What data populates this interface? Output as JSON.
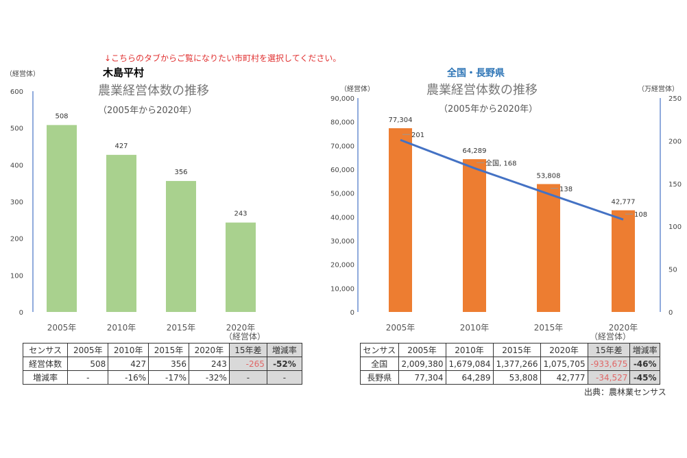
{
  "notice": "↓こちらのタブからご覧になりたい市町村を選択してください。",
  "source": "出典：農林業センサス",
  "colors": {
    "green": "#a9d18e",
    "orange": "#ed7d31",
    "line": "#4472c4",
    "axis": "#8faadc",
    "title": "#2e75b6"
  },
  "chart_data": [
    {
      "type": "bar",
      "name": "木島平村",
      "title": "農業経営体数の推移",
      "subtitle": "（2005年から2020年）",
      "ylabel": "（経営体）",
      "xlabel_unit": "（経営体）",
      "categories": [
        "2005年",
        "2010年",
        "2015年",
        "2020年"
      ],
      "values": [
        508,
        427,
        356,
        243
      ],
      "ylim": [
        0,
        600
      ],
      "yticks": [
        "0",
        "100",
        "200",
        "300",
        "400",
        "500",
        "600"
      ]
    },
    {
      "type": "bar+line",
      "name": "全国・長野県",
      "title": "農業経営体数の推移",
      "subtitle": "（2005年から2020年）",
      "ylabel": "（経営体）",
      "y2label": "（万経営体）",
      "xlabel_unit": "（経営体）",
      "categories": [
        "2005年",
        "2010年",
        "2015年",
        "2020年"
      ],
      "series": [
        {
          "name": "長野",
          "type": "bar",
          "values": [
            77304,
            64289,
            53808,
            42777
          ],
          "labels": [
            "77,304",
            "64,289",
            "53,808",
            "42,777"
          ]
        },
        {
          "name": "全国",
          "type": "line",
          "axis": "right",
          "values": [
            201,
            168,
            138,
            108
          ],
          "labels": [
            "201",
            "全国, 168",
            "138",
            "108"
          ]
        }
      ],
      "bar_series_label": "長野",
      "ylim": [
        0,
        90000
      ],
      "yticks": [
        "0",
        "10,000",
        "20,000",
        "30,000",
        "40,000",
        "50,000",
        "60,000",
        "70,000",
        "80,000",
        "90,000"
      ],
      "y2lim": [
        0,
        250
      ],
      "y2ticks": [
        "0",
        "50",
        "100",
        "150",
        "200",
        "250"
      ]
    }
  ],
  "tables": [
    {
      "header": [
        "センサス",
        "2005年",
        "2010年",
        "2015年",
        "2020年",
        "15年差",
        "増減率"
      ],
      "rows": [
        [
          "経営体数",
          "508",
          "427",
          "356",
          "243",
          "-265",
          "-52%"
        ],
        [
          "増減率",
          "-",
          "-16%",
          "-17%",
          "-32%",
          "-",
          "-"
        ]
      ]
    },
    {
      "header": [
        "センサス",
        "2005年",
        "2010年",
        "2015年",
        "2020年",
        "15年差",
        "増減率"
      ],
      "rows": [
        [
          "全国",
          "2,009,380",
          "1,679,084",
          "1,377,266",
          "1,075,705",
          "-933,675",
          "-46%"
        ],
        [
          "長野県",
          "77,304",
          "64,289",
          "53,808",
          "42,777",
          "-34,527",
          "-45%"
        ]
      ]
    }
  ]
}
